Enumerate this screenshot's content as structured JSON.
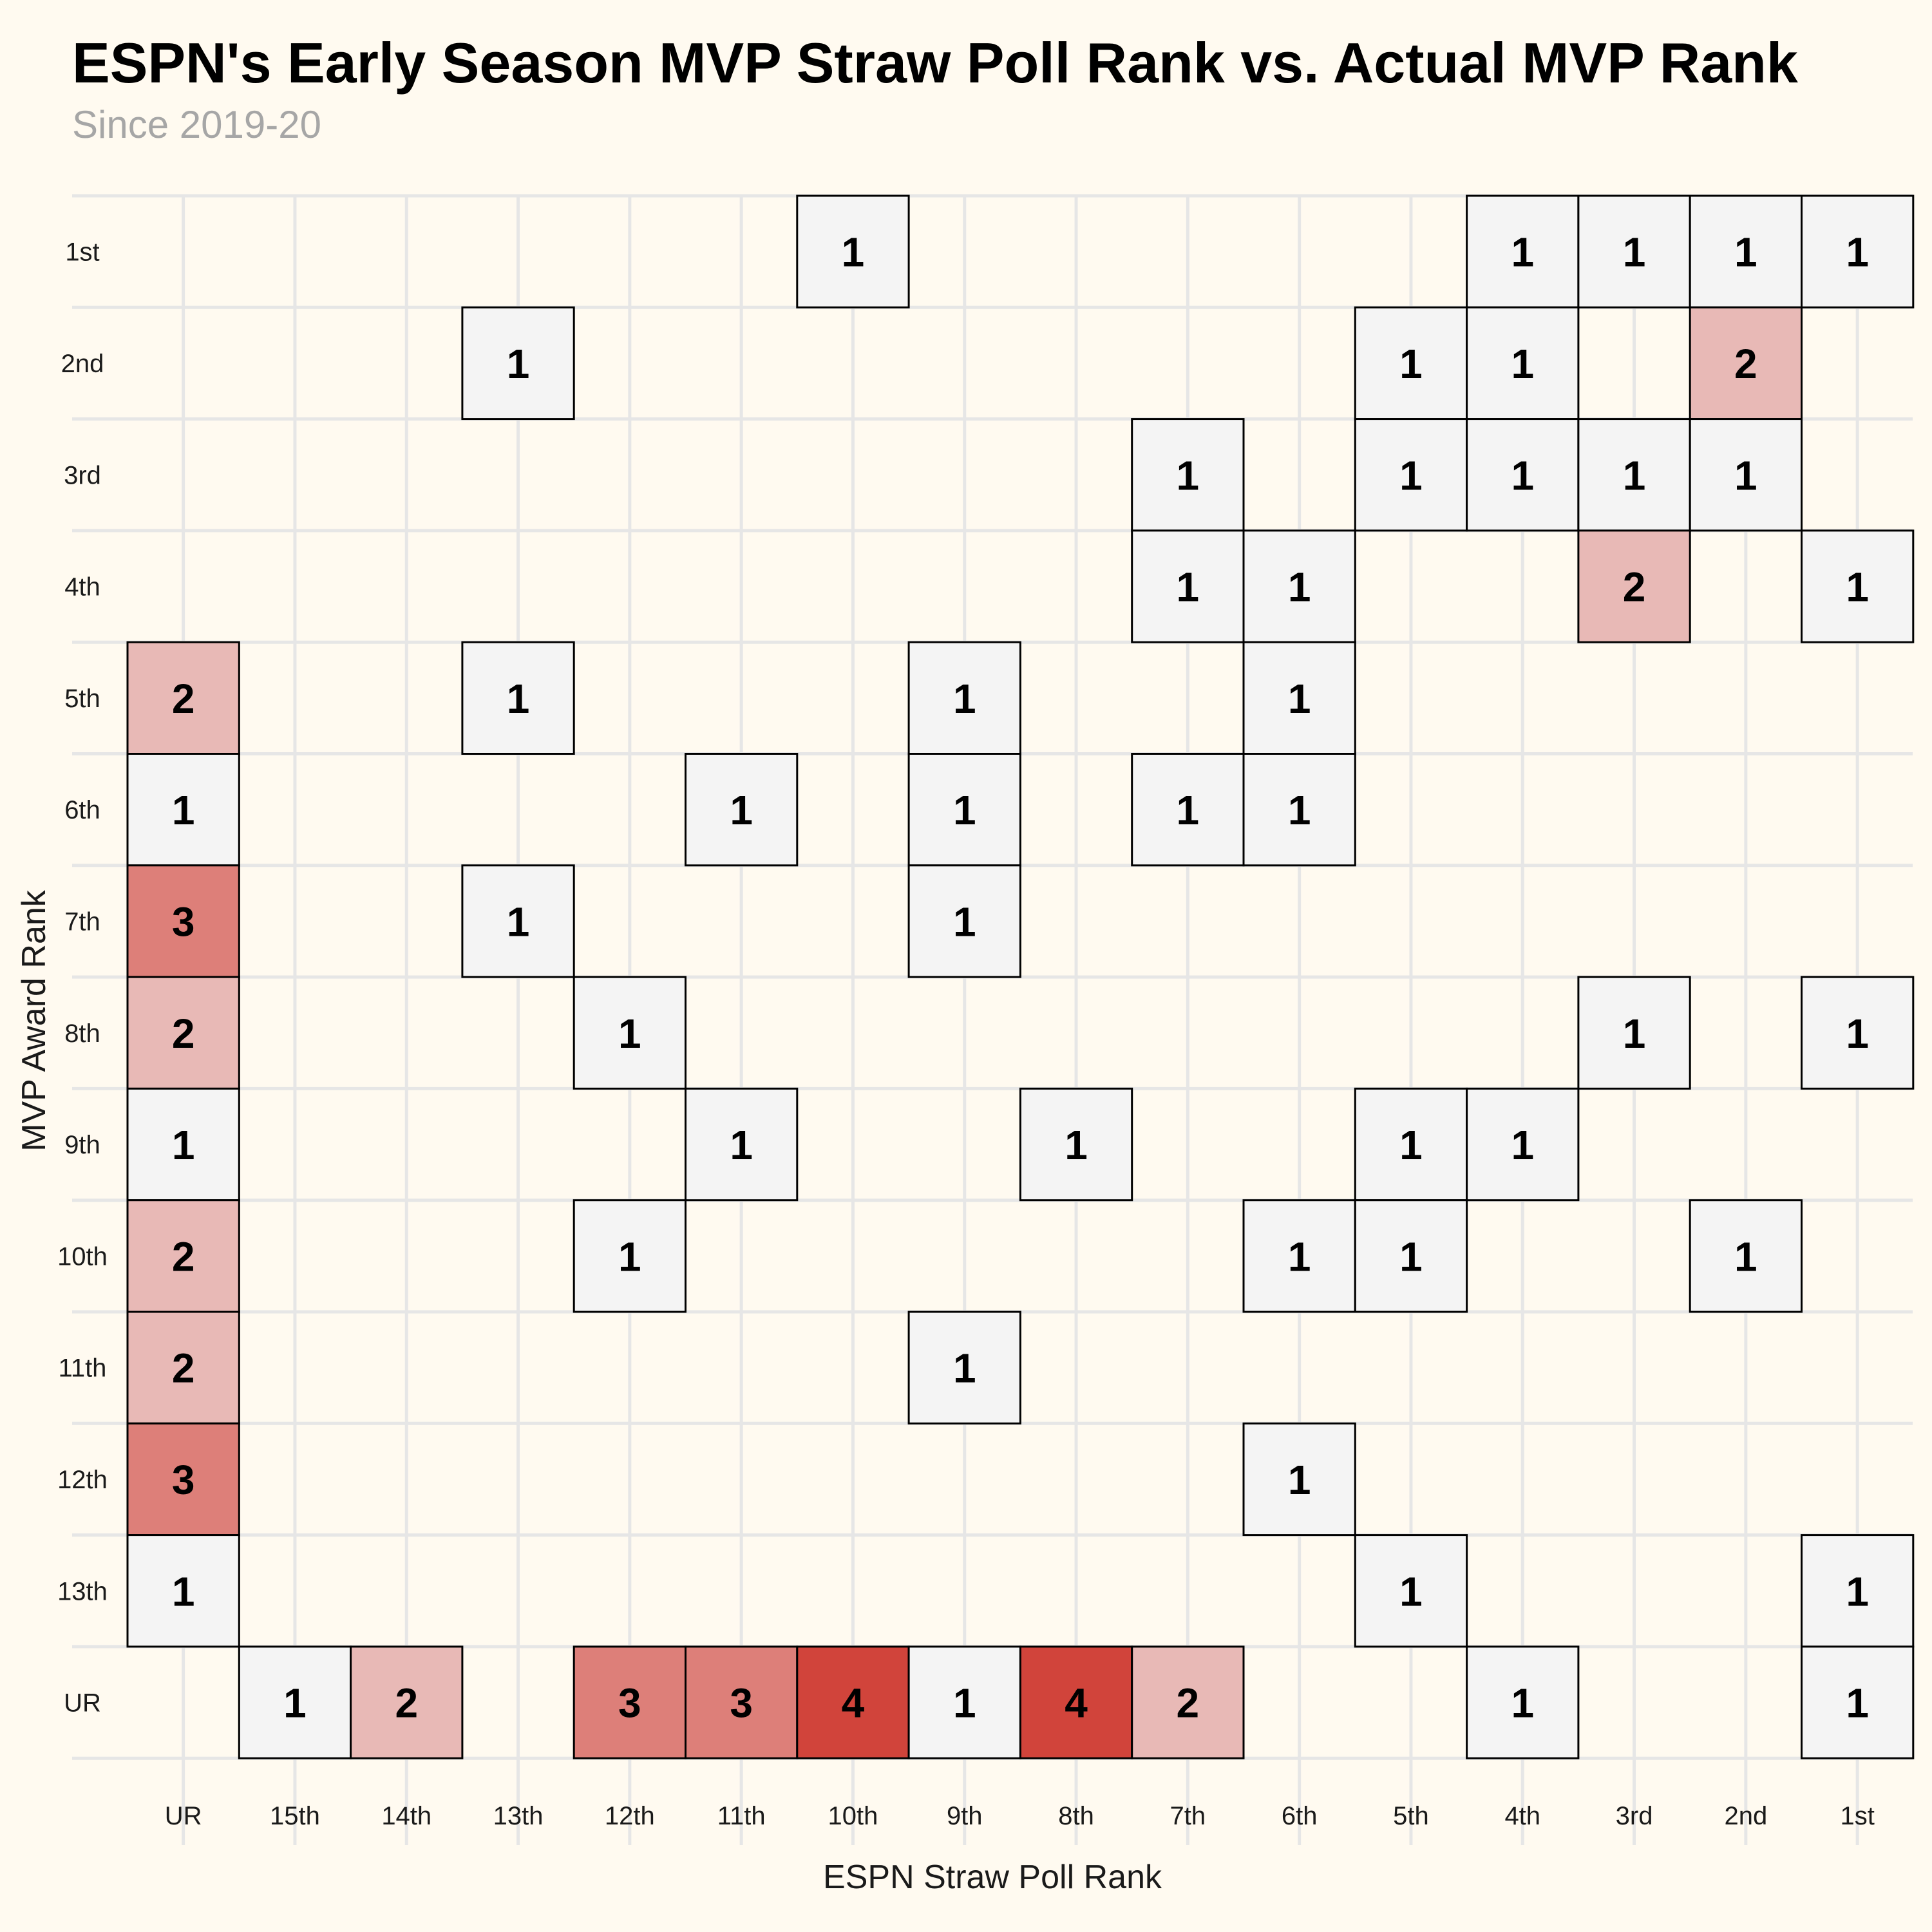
{
  "title": "ESPN's Early Season MVP Straw Poll Rank vs. Actual MVP Rank",
  "subtitle": "Since 2019-20",
  "chart_data": {
    "type": "heatmap",
    "title": "ESPN's Early Season MVP Straw Poll Rank vs. Actual MVP Rank",
    "subtitle": "Since 2019-20",
    "xlabel": "ESPN Straw Poll Rank",
    "ylabel": "MVP Award Rank",
    "x_categories": [
      "UR",
      "15th",
      "14th",
      "13th",
      "12th",
      "11th",
      "10th",
      "9th",
      "8th",
      "7th",
      "6th",
      "5th",
      "4th",
      "3rd",
      "2nd",
      "1st"
    ],
    "y_categories": [
      "1st",
      "2nd",
      "3rd",
      "4th",
      "5th",
      "6th",
      "7th",
      "8th",
      "9th",
      "10th",
      "11th",
      "12th",
      "13th",
      "UR"
    ],
    "grid": true,
    "color_scale": {
      "low": "#f4f4f4",
      "high": "#d1443b",
      "min": 1,
      "max": 4
    },
    "cells": [
      {
        "x": "10th",
        "y": "1st",
        "value": 1
      },
      {
        "x": "4th",
        "y": "1st",
        "value": 1
      },
      {
        "x": "3rd",
        "y": "1st",
        "value": 1
      },
      {
        "x": "2nd",
        "y": "1st",
        "value": 1
      },
      {
        "x": "1st",
        "y": "1st",
        "value": 1
      },
      {
        "x": "13th",
        "y": "2nd",
        "value": 1
      },
      {
        "x": "5th",
        "y": "2nd",
        "value": 1
      },
      {
        "x": "4th",
        "y": "2nd",
        "value": 1
      },
      {
        "x": "2nd",
        "y": "2nd",
        "value": 2
      },
      {
        "x": "7th",
        "y": "3rd",
        "value": 1
      },
      {
        "x": "5th",
        "y": "3rd",
        "value": 1
      },
      {
        "x": "4th",
        "y": "3rd",
        "value": 1
      },
      {
        "x": "3rd",
        "y": "3rd",
        "value": 1
      },
      {
        "x": "2nd",
        "y": "3rd",
        "value": 1
      },
      {
        "x": "7th",
        "y": "4th",
        "value": 1
      },
      {
        "x": "6th",
        "y": "4th",
        "value": 1
      },
      {
        "x": "3rd",
        "y": "4th",
        "value": 2
      },
      {
        "x": "1st",
        "y": "4th",
        "value": 1
      },
      {
        "x": "UR",
        "y": "5th",
        "value": 2
      },
      {
        "x": "13th",
        "y": "5th",
        "value": 1
      },
      {
        "x": "9th",
        "y": "5th",
        "value": 1
      },
      {
        "x": "6th",
        "y": "5th",
        "value": 1
      },
      {
        "x": "UR",
        "y": "6th",
        "value": 1
      },
      {
        "x": "11th",
        "y": "6th",
        "value": 1
      },
      {
        "x": "9th",
        "y": "6th",
        "value": 1
      },
      {
        "x": "7th",
        "y": "6th",
        "value": 1
      },
      {
        "x": "6th",
        "y": "6th",
        "value": 1
      },
      {
        "x": "UR",
        "y": "7th",
        "value": 3
      },
      {
        "x": "13th",
        "y": "7th",
        "value": 1
      },
      {
        "x": "9th",
        "y": "7th",
        "value": 1
      },
      {
        "x": "UR",
        "y": "8th",
        "value": 2
      },
      {
        "x": "12th",
        "y": "8th",
        "value": 1
      },
      {
        "x": "3rd",
        "y": "8th",
        "value": 1
      },
      {
        "x": "1st",
        "y": "8th",
        "value": 1
      },
      {
        "x": "UR",
        "y": "9th",
        "value": 1
      },
      {
        "x": "11th",
        "y": "9th",
        "value": 1
      },
      {
        "x": "8th",
        "y": "9th",
        "value": 1
      },
      {
        "x": "5th",
        "y": "9th",
        "value": 1
      },
      {
        "x": "4th",
        "y": "9th",
        "value": 1
      },
      {
        "x": "UR",
        "y": "10th",
        "value": 2
      },
      {
        "x": "12th",
        "y": "10th",
        "value": 1
      },
      {
        "x": "6th",
        "y": "10th",
        "value": 1
      },
      {
        "x": "5th",
        "y": "10th",
        "value": 1
      },
      {
        "x": "2nd",
        "y": "10th",
        "value": 1
      },
      {
        "x": "UR",
        "y": "11th",
        "value": 2
      },
      {
        "x": "9th",
        "y": "11th",
        "value": 1
      },
      {
        "x": "UR",
        "y": "12th",
        "value": 3
      },
      {
        "x": "6th",
        "y": "12th",
        "value": 1
      },
      {
        "x": "UR",
        "y": "13th",
        "value": 1
      },
      {
        "x": "5th",
        "y": "13th",
        "value": 1
      },
      {
        "x": "1st",
        "y": "13th",
        "value": 1
      },
      {
        "x": "15th",
        "y": "UR",
        "value": 1
      },
      {
        "x": "14th",
        "y": "UR",
        "value": 2
      },
      {
        "x": "12th",
        "y": "UR",
        "value": 3
      },
      {
        "x": "11th",
        "y": "UR",
        "value": 3
      },
      {
        "x": "10th",
        "y": "UR",
        "value": 4
      },
      {
        "x": "9th",
        "y": "UR",
        "value": 1
      },
      {
        "x": "8th",
        "y": "UR",
        "value": 4
      },
      {
        "x": "7th",
        "y": "UR",
        "value": 2
      },
      {
        "x": "4th",
        "y": "UR",
        "value": 1
      },
      {
        "x": "1st",
        "y": "UR",
        "value": 1
      }
    ]
  }
}
